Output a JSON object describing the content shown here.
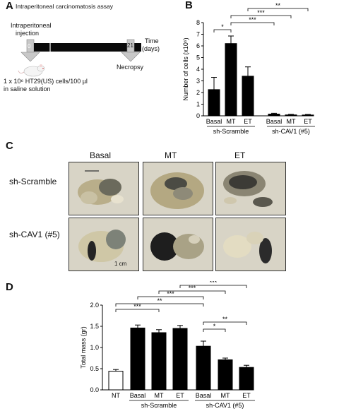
{
  "panels": {
    "a": "A",
    "b": "B",
    "c": "C",
    "d": "D"
  },
  "panel_a": {
    "title": "Intraperitoneal carcinomatosis assay",
    "injection_label_1": "Intraperitoneal",
    "injection_label_2": "injection",
    "day_start": "0",
    "day_end": "21",
    "time_label_1": "Time",
    "time_label_2": "(days)",
    "necropsy_label": "Necropsy",
    "cells_label_1": "1 x 10⁶ HT29(US) cells/100 µl",
    "cells_label_2": "in saline solution"
  },
  "panel_c": {
    "col_headers": [
      "Basal",
      "MT",
      "ET"
    ],
    "row_headers": [
      "sh-Scramble",
      "sh-CAV1 (#5)"
    ],
    "scale_bar": "1 cm"
  },
  "chart_data": [
    {
      "type": "bar",
      "panel": "B",
      "ylabel": "Number of cells (x10⁶)",
      "ylim": [
        0,
        8
      ],
      "yticks": [
        "0",
        "1",
        "2",
        "3",
        "4",
        "5",
        "6",
        "7",
        "8"
      ],
      "categories": [
        "Basal",
        "MT",
        "ET",
        "Basal",
        "MT",
        "ET"
      ],
      "groups": [
        "sh-Scramble",
        "sh-CAV1 (#5)"
      ],
      "values": [
        2.25,
        6.2,
        3.4,
        0.15,
        0.08,
        0.07
      ],
      "errors": [
        1.05,
        0.65,
        0.8,
        0.07,
        0.05,
        0.05
      ],
      "significance": [
        {
          "from": 0,
          "to": 1,
          "label": "*"
        },
        {
          "from": 1,
          "to": 3,
          "label": "***"
        },
        {
          "from": 1,
          "to": 4,
          "label": "***"
        },
        {
          "from": 2,
          "to": 5,
          "label": "**"
        }
      ],
      "bar_color": "#000000"
    },
    {
      "type": "bar",
      "panel": "D",
      "ylabel": "Total mass (gr)",
      "ylim": [
        0,
        2.0
      ],
      "yticks": [
        "0.0",
        "0.5",
        "1.0",
        "1.5",
        "2.0"
      ],
      "categories": [
        "NT",
        "Basal",
        "MT",
        "ET",
        "Basal",
        "MT",
        "ET"
      ],
      "groups": [
        "",
        "sh-Scramble",
        "sh-CAV1 (#5)"
      ],
      "values": [
        0.44,
        1.46,
        1.35,
        1.45,
        1.03,
        0.71,
        0.53
      ],
      "errors": [
        0.04,
        0.07,
        0.07,
        0.07,
        0.12,
        0.04,
        0.05
      ],
      "fills": [
        "#ffffff",
        "#000000",
        "#000000",
        "#000000",
        "#000000",
        "#000000",
        "#000000"
      ],
      "significance": [
        {
          "from": 0,
          "to": 2,
          "label": "***"
        },
        {
          "from": 0,
          "to": 4,
          "label": "**"
        },
        {
          "from": 1,
          "to": 4,
          "label": "***"
        },
        {
          "from": 2,
          "to": 5,
          "label": "***"
        },
        {
          "from": 3,
          "to": 6,
          "label": "***"
        },
        {
          "from": 4,
          "to": 5,
          "label": "*"
        },
        {
          "from": 4,
          "to": 6,
          "label": "**"
        }
      ]
    }
  ]
}
